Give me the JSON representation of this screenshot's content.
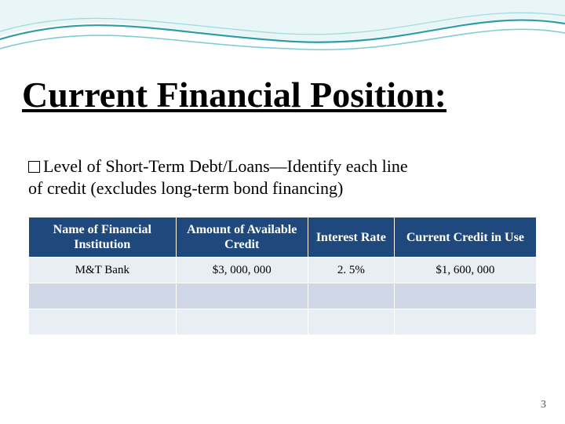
{
  "title": "Current Financial Position:",
  "subtitle_line1": "Level of Short-Term Debt/Loans—Identify each line",
  "subtitle_line2": "of credit (excludes long-term bond financing)",
  "table": {
    "header_bg": "#1f497d",
    "header_color": "#ffffff",
    "row_alt_colors": [
      "#e9edf4",
      "#d0d8e8"
    ],
    "col_widths": [
      "29%",
      "26%",
      "17%",
      "28%"
    ],
    "columns": [
      "Name of Financial Institution",
      "Amount of Available Credit",
      "Interest Rate",
      "Current  Credit in Use"
    ],
    "rows": [
      [
        "M&T Bank",
        "$3, 000, 000",
        "2. 5%",
        "$1, 600, 000"
      ],
      [
        "",
        "",
        "",
        ""
      ],
      [
        "",
        "",
        "",
        ""
      ]
    ]
  },
  "page_number": "3",
  "wave": {
    "stroke1": "#2e9ca6",
    "stroke2": "#7fcdd4",
    "fill_light": "#e8f6f7"
  }
}
